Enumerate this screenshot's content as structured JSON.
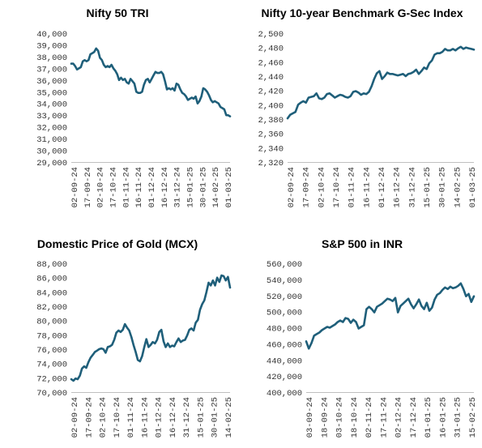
{
  "line_color": "#1f5f7a",
  "chart_data": [
    {
      "type": "line",
      "title": "Nifty 50 TRI",
      "ylim": [
        29000,
        40000
      ],
      "yticks": [
        29000,
        30000,
        31000,
        32000,
        33000,
        34000,
        35000,
        36000,
        37000,
        38000,
        39000,
        40000
      ],
      "ytick_labels": [
        "29,000",
        "30,000",
        "31,000",
        "32,000",
        "33,000",
        "34,000",
        "35,000",
        "36,000",
        "37,000",
        "38,000",
        "39,000",
        "40,000"
      ],
      "xtick_labels": [
        "02-09-24",
        "17-09-24",
        "02-10-24",
        "17-10-24",
        "01-11-24",
        "16-11-24",
        "01-12-24",
        "16-12-24",
        "31-12-24",
        "15-01-25",
        "30-01-25",
        "14-02-25",
        "01-03-25"
      ],
      "grid": false,
      "values": [
        37400,
        37400,
        37200,
        36900,
        37000,
        37100,
        37600,
        37700,
        37600,
        37700,
        38200,
        38300,
        38400,
        38700,
        38500,
        37900,
        37700,
        37300,
        37100,
        37200,
        37100,
        37300,
        37000,
        36800,
        36500,
        36000,
        36200,
        36000,
        36100,
        35800,
        35700,
        36100,
        35900,
        35700,
        35000,
        34900,
        34900,
        35000,
        35600,
        36000,
        36100,
        35800,
        36100,
        36400,
        36700,
        36600,
        36600,
        36700,
        36500,
        35900,
        35200,
        35300,
        35200,
        35300,
        35100,
        35700,
        35600,
        35200,
        34900,
        34800,
        34600,
        34300,
        34400,
        34500,
        34400,
        34600,
        34000,
        34200,
        34600,
        35300,
        35200,
        35000,
        34700,
        34300,
        34100,
        34200,
        34100,
        34000,
        33700,
        33600,
        33500,
        33000,
        33000,
        32900
      ]
    },
    {
      "type": "line",
      "title": "Nifty 10-year Benchmark G-Sec Index",
      "ylim": [
        2320,
        2500
      ],
      "yticks": [
        2320,
        2340,
        2360,
        2380,
        2400,
        2420,
        2440,
        2460,
        2480,
        2500
      ],
      "ytick_labels": [
        "2,320",
        "2,340",
        "2,360",
        "2,380",
        "2,400",
        "2,420",
        "2,440",
        "2,460",
        "2,480",
        "2,500"
      ],
      "xtick_labels": [
        "02-09-24",
        "17-09-24",
        "02-10-24",
        "17-10-24",
        "01-11-24",
        "16-11-24",
        "01-12-24",
        "16-12-24",
        "31-12-24",
        "15-01-25",
        "30-01-25",
        "14-02-25",
        "01-03-25"
      ],
      "grid": false,
      "values": [
        2381,
        2386,
        2388,
        2390,
        2400,
        2403,
        2405,
        2403,
        2410,
        2411,
        2412,
        2416,
        2409,
        2408,
        2410,
        2415,
        2416,
        2413,
        2410,
        2412,
        2414,
        2413,
        2411,
        2410,
        2412,
        2418,
        2419,
        2417,
        2414,
        2416,
        2415,
        2418,
        2426,
        2436,
        2444,
        2447,
        2436,
        2440,
        2445,
        2443,
        2443,
        2442,
        2441,
        2442,
        2443,
        2440,
        2443,
        2444,
        2446,
        2449,
        2443,
        2447,
        2452,
        2450,
        2458,
        2462,
        2470,
        2472,
        2472,
        2474,
        2478,
        2476,
        2476,
        2478,
        2476,
        2479,
        2481,
        2478,
        2480,
        2479,
        2478,
        2477
      ]
    },
    {
      "type": "line",
      "title": "Domestic Price of Gold (MCX)",
      "ylim": [
        70000,
        88000
      ],
      "yticks": [
        70000,
        72000,
        74000,
        76000,
        78000,
        80000,
        82000,
        84000,
        86000,
        88000
      ],
      "ytick_labels": [
        "70,000",
        "72,000",
        "74,000",
        "76,000",
        "78,000",
        "80,000",
        "82,000",
        "84,000",
        "86,000",
        "88,000"
      ],
      "xtick_labels": [
        "02-09-24",
        "17-09-24",
        "02-10-24",
        "17-10-24",
        "01-11-24",
        "16-11-24",
        "01-12-24",
        "16-12-24",
        "31-12-24",
        "15-01-25",
        "30-01-25",
        "14-02-25"
      ],
      "grid": false,
      "values": [
        71800,
        71600,
        71900,
        71800,
        72300,
        73300,
        73600,
        73400,
        74200,
        74800,
        75200,
        75600,
        75800,
        76000,
        76100,
        76000,
        75500,
        76300,
        76400,
        76600,
        77300,
        78300,
        78600,
        78400,
        78700,
        79500,
        79000,
        78600,
        77700,
        76600,
        75600,
        74500,
        74300,
        75000,
        76300,
        77400,
        76300,
        76600,
        77000,
        76800,
        77300,
        78400,
        78700,
        77100,
        76300,
        76800,
        76300,
        76500,
        76400,
        77000,
        77500,
        77000,
        77200,
        77300,
        77900,
        78700,
        78900,
        78600,
        79700,
        80100,
        81500,
        82300,
        82800,
        84000,
        85300,
        84900,
        85600,
        84900,
        86000,
        85400,
        86300,
        86200,
        85600,
        86100,
        84600
      ]
    },
    {
      "type": "line",
      "title": "S&P 500 in INR",
      "ylim": [
        400000,
        560000
      ],
      "yticks": [
        400000,
        420000,
        440000,
        460000,
        480000,
        500000,
        520000,
        540000,
        560000
      ],
      "ytick_labels": [
        "400,000",
        "420,000",
        "440,000",
        "460,000",
        "480,000",
        "500,000",
        "520,000",
        "540,000",
        "560,000"
      ],
      "xtick_labels": [
        "03-09-24",
        "18-09-24",
        "03-10-24",
        "18-10-24",
        "02-11-24",
        "17-11-24",
        "02-12-24",
        "17-12-24",
        "01-01-25",
        "16-01-25",
        "31-01-25",
        "15-02-25"
      ],
      "grid": false,
      "values": [
        463000,
        454000,
        461000,
        470000,
        472000,
        474000,
        477000,
        479000,
        481000,
        480000,
        482000,
        484000,
        487000,
        489000,
        487000,
        492000,
        491000,
        486000,
        490000,
        487000,
        479000,
        481000,
        483000,
        503000,
        506000,
        503000,
        499000,
        506000,
        508000,
        510000,
        513000,
        516000,
        515000,
        513000,
        517000,
        499000,
        507000,
        510000,
        513000,
        516000,
        509000,
        504000,
        509000,
        515000,
        507000,
        503000,
        511000,
        501000,
        505000,
        515000,
        521000,
        523000,
        527000,
        530000,
        528000,
        531000,
        529000,
        530000,
        532000,
        535000,
        528000,
        519000,
        522000,
        512000,
        519000
      ]
    }
  ]
}
